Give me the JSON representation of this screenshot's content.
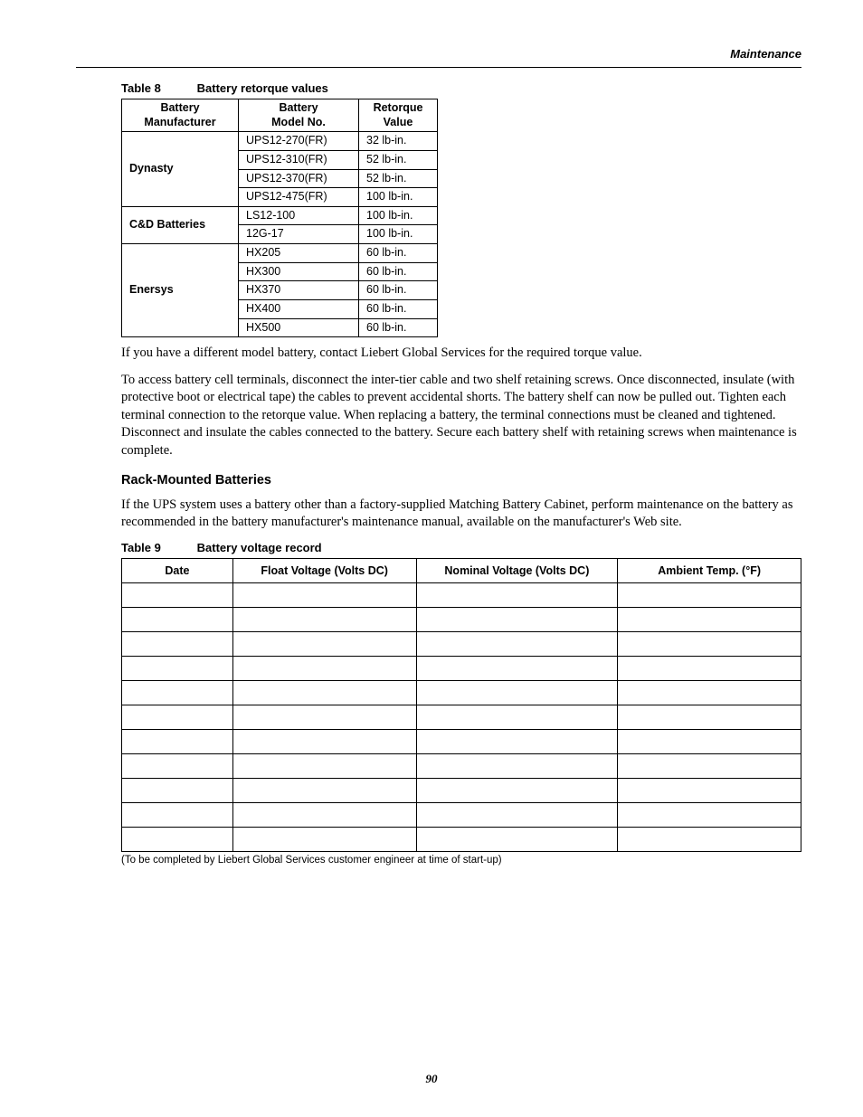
{
  "header": {
    "section": "Maintenance"
  },
  "page_number": "90",
  "table8": {
    "caption_num": "Table 8",
    "caption_title": "Battery retorque values",
    "columns": [
      "Battery Manufacturer",
      "Battery Model No.",
      "Retorque Value"
    ],
    "groups": [
      {
        "mfg": "Dynasty",
        "rows": [
          {
            "model": "UPS12-270(FR)",
            "value": "32 lb-in."
          },
          {
            "model": "UPS12-310(FR)",
            "value": "52 lb-in."
          },
          {
            "model": "UPS12-370(FR)",
            "value": "52 lb-in."
          },
          {
            "model": "UPS12-475(FR)",
            "value": "100 lb-in."
          }
        ]
      },
      {
        "mfg": "C&D Batteries",
        "rows": [
          {
            "model": "LS12-100",
            "value": "100 lb-in."
          },
          {
            "model": "12G-17",
            "value": "100 lb-in."
          }
        ]
      },
      {
        "mfg": "Enersys",
        "rows": [
          {
            "model": "HX205",
            "value": "60 lb-in."
          },
          {
            "model": "HX300",
            "value": "60 lb-in."
          },
          {
            "model": "HX370",
            "value": "60 lb-in."
          },
          {
            "model": "HX400",
            "value": "60 lb-in."
          },
          {
            "model": "HX500",
            "value": "60 lb-in."
          }
        ]
      }
    ]
  },
  "para1": "If you have a different model battery, contact Liebert Global Services for the required torque value.",
  "para2": "To access battery cell terminals, disconnect the inter-tier cable and two shelf retaining screws. Once disconnected, insulate (with protective boot or electrical tape) the cables to prevent accidental shorts. The battery shelf can now be pulled out. Tighten each terminal connection to the retorque value. When replacing a battery, the terminal connections must be cleaned and tightened. Disconnect and insulate the cables connected to the battery. Secure each battery shelf with retaining screws when maintenance is complete.",
  "subhead": "Rack-Mounted Batteries",
  "para3": "If the UPS system uses a battery other than a factory-supplied Matching Battery Cabinet, perform maintenance on the battery as recommended in the battery manufacturer's maintenance manual, available on the manufacturer's Web site.",
  "table9": {
    "caption_num": "Table 9",
    "caption_title": "Battery voltage record",
    "columns": [
      "Date",
      "Float Voltage (Volts DC)",
      "Nominal Voltage (Volts DC)",
      "Ambient Temp. (°F)"
    ],
    "blank_rows": 11,
    "footnote": "(To be completed by Liebert Global Services customer engineer at time of start-up)"
  }
}
